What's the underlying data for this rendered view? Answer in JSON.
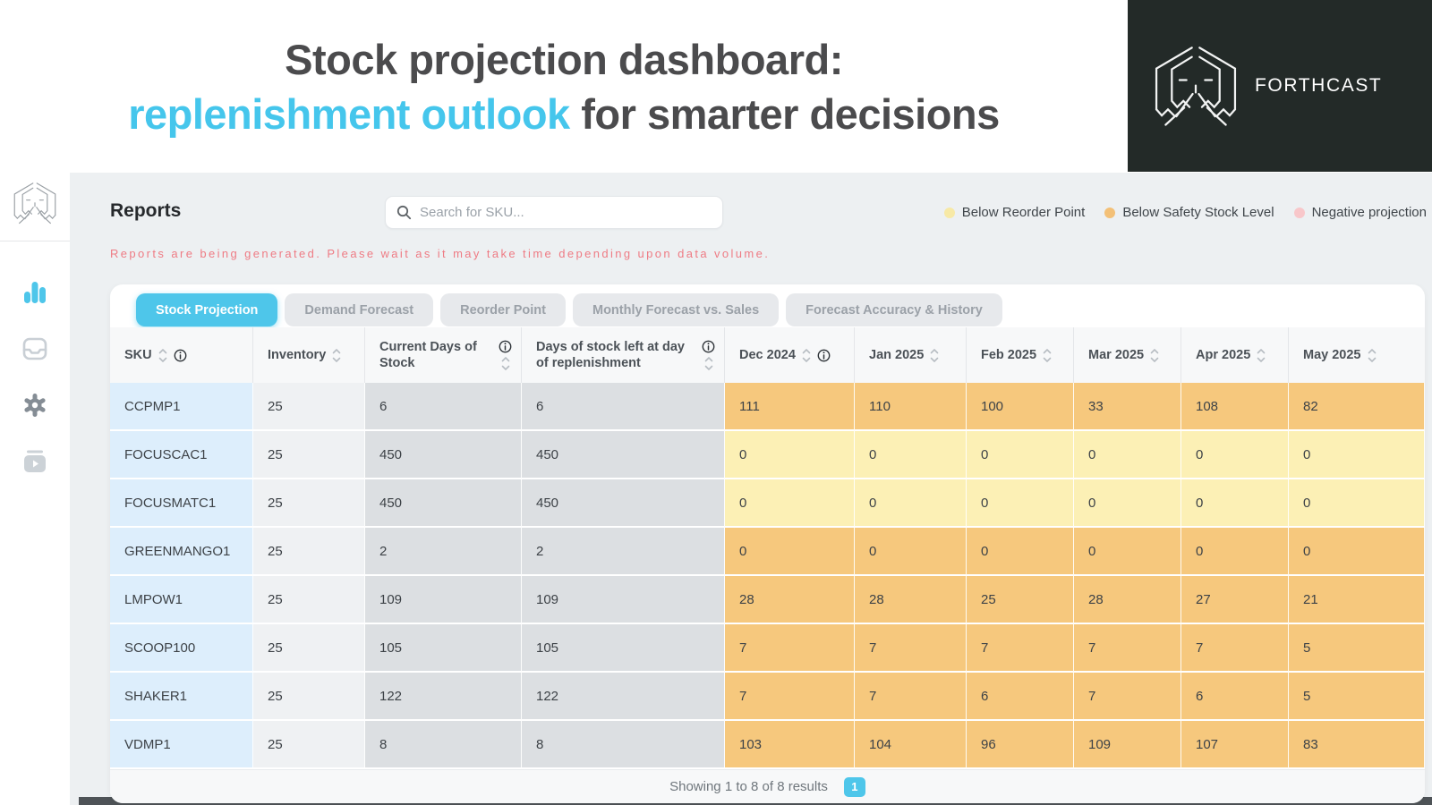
{
  "banner": {
    "title_line1": "Stock projection dashboard:",
    "title_highlight": "replenishment outlook",
    "title_rest": " for smarter decisions"
  },
  "brand": {
    "name": "FORTHCAST"
  },
  "sidebar": {
    "items": [
      {
        "icon": "bar-chart",
        "active": true
      },
      {
        "icon": "inbox",
        "active": false
      },
      {
        "icon": "settings",
        "active": false
      },
      {
        "icon": "video-library",
        "active": false
      }
    ]
  },
  "header": {
    "title": "Reports",
    "search_placeholder": "Search for SKU...",
    "notice": "Reports are being generated. Please wait as it may take time depending upon data volume.",
    "legend": [
      {
        "label": "Below Reorder Point",
        "color": "#f7e9a6"
      },
      {
        "label": "Below Safety Stock Level",
        "color": "#f3c077"
      },
      {
        "label": "Negative projection",
        "color": "#f8c7ca"
      }
    ]
  },
  "tabs": [
    {
      "label": "Stock Projection",
      "active": true
    },
    {
      "label": "Demand Forecast",
      "active": false
    },
    {
      "label": "Reorder Point",
      "active": false
    },
    {
      "label": "Monthly Forecast vs. Sales",
      "active": false
    },
    {
      "label": "Forecast Accuracy & History",
      "active": false
    }
  ],
  "table": {
    "columns": [
      {
        "label": "SKU",
        "sort": true,
        "info": true,
        "twoline": false
      },
      {
        "label": "Inventory",
        "sort": true,
        "info": false,
        "twoline": false
      },
      {
        "label": "Current Days of Stock",
        "sort": true,
        "info": true,
        "twoline": true
      },
      {
        "label": "Days of stock left at day of replenishment",
        "sort": true,
        "info": true,
        "twoline": true
      },
      {
        "label": "Dec 2024",
        "sort": true,
        "info": true,
        "twoline": false
      },
      {
        "label": "Jan 2025",
        "sort": true,
        "info": false,
        "twoline": false
      },
      {
        "label": "Feb 2025",
        "sort": true,
        "info": false,
        "twoline": false
      },
      {
        "label": "Mar 2025",
        "sort": true,
        "info": false,
        "twoline": false
      },
      {
        "label": "Apr 2025",
        "sort": true,
        "info": false,
        "twoline": false
      },
      {
        "label": "May 2025",
        "sort": true,
        "info": false,
        "twoline": false
      }
    ],
    "rows": [
      {
        "sku": "CCPMP1",
        "inventory": "25",
        "current_days": "6",
        "days_left": "6",
        "months": [
          "111",
          "110",
          "100",
          "33",
          "108",
          "82"
        ],
        "tone": "orange"
      },
      {
        "sku": "FOCUSCAC1",
        "inventory": "25",
        "current_days": "450",
        "days_left": "450",
        "months": [
          "0",
          "0",
          "0",
          "0",
          "0",
          "0"
        ],
        "tone": "yellow"
      },
      {
        "sku": "FOCUSMATC1",
        "inventory": "25",
        "current_days": "450",
        "days_left": "450",
        "months": [
          "0",
          "0",
          "0",
          "0",
          "0",
          "0"
        ],
        "tone": "yellow"
      },
      {
        "sku": "GREENMANGO1",
        "inventory": "25",
        "current_days": "2",
        "days_left": "2",
        "months": [
          "0",
          "0",
          "0",
          "0",
          "0",
          "0"
        ],
        "tone": "orange"
      },
      {
        "sku": "LMPOW1",
        "inventory": "25",
        "current_days": "109",
        "days_left": "109",
        "months": [
          "28",
          "28",
          "25",
          "28",
          "27",
          "21"
        ],
        "tone": "orange"
      },
      {
        "sku": "SCOOP100",
        "inventory": "25",
        "current_days": "105",
        "days_left": "105",
        "months": [
          "7",
          "7",
          "7",
          "7",
          "7",
          "5"
        ],
        "tone": "orange"
      },
      {
        "sku": "SHAKER1",
        "inventory": "25",
        "current_days": "122",
        "days_left": "122",
        "months": [
          "7",
          "7",
          "6",
          "7",
          "6",
          "5"
        ],
        "tone": "orange"
      },
      {
        "sku": "VDMP1",
        "inventory": "25",
        "current_days": "8",
        "days_left": "8",
        "months": [
          "103",
          "104",
          "96",
          "109",
          "107",
          "83"
        ],
        "tone": "orange"
      }
    ]
  },
  "footer": {
    "summary": "Showing 1 to 8 of 8 results",
    "page": "1"
  },
  "colors": {
    "accent": "#4ec6ea",
    "banner_highlight": "#45c6ec",
    "brand_bg": "#232a28",
    "notice_text": "#ee7b84",
    "cell_orange": "#f6c87d",
    "cell_yellow": "#fcf0b5",
    "cell_sku_blue": "#ddeefc",
    "cell_gray": "#dcdfe2",
    "legend_yellow": "#f7e9a6",
    "legend_orange": "#f3c077",
    "legend_pink": "#f8c7ca"
  }
}
